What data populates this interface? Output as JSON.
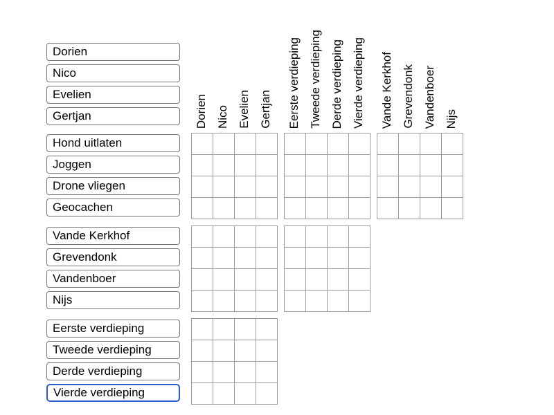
{
  "palette": {
    "background": "#ffffff",
    "box_border": "#757575",
    "grid_border": "#9b9b9b",
    "focus_border": "#2b5ccc",
    "text": "#000000"
  },
  "categories": {
    "people": {
      "labels": [
        "Dorien",
        "Nico",
        "Evelien",
        "Gertjan"
      ]
    },
    "activities": {
      "labels": [
        "Hond uitlaten",
        "Joggen",
        "Drone vliegen",
        "Geocachen"
      ]
    },
    "floors": {
      "labels": [
        "Eerste verdieping",
        "Tweede verdieping",
        "Derde verdieping",
        "Vierde verdieping"
      ]
    },
    "surnames": {
      "labels": [
        "Vande Kerkhof",
        "Grevendonk",
        "Vandenboer",
        "Nijs"
      ]
    }
  },
  "layout_order": {
    "top_left_labels": "people",
    "column_header_groups": [
      "people",
      "floors",
      "surnames"
    ],
    "row_groups": [
      {
        "labels": "activities",
        "grid_columns": [
          "people",
          "floors",
          "surnames"
        ]
      },
      {
        "labels": "surnames",
        "grid_columns": [
          "people",
          "floors"
        ]
      },
      {
        "labels": "floors",
        "grid_columns": [
          "people"
        ]
      }
    ]
  },
  "focused_label": "Vierde verdieping",
  "grid": {
    "rows_per_block": 4,
    "cols_per_block": 4,
    "cells_empty": true
  }
}
